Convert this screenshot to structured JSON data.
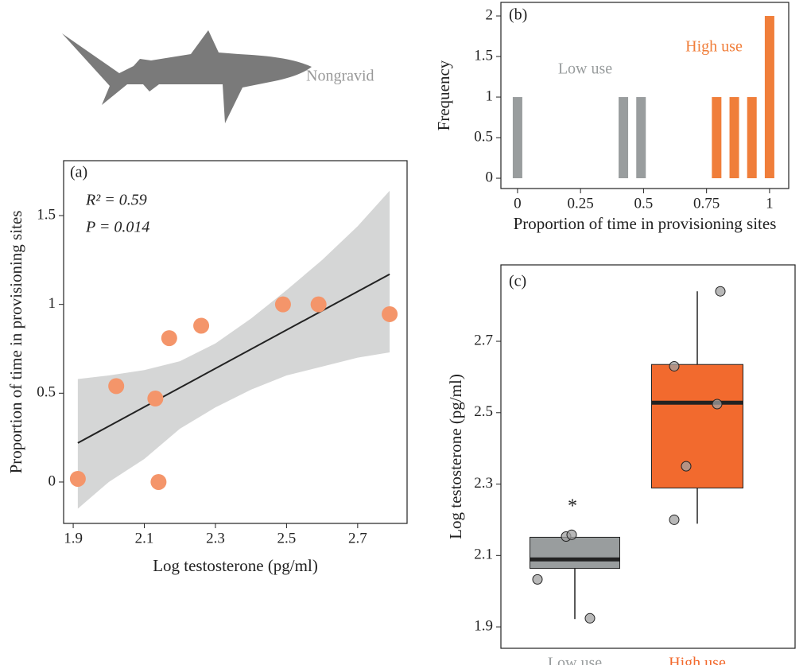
{
  "annotation": "Nongravid",
  "chart_data": [
    {
      "type": "scatter",
      "panel_label": "(a)",
      "annotations": [
        "R² = 0.59",
        "P = 0.014"
      ],
      "xlabel": "Log testosterone (pg/ml)",
      "ylabel": "Proportion of time in provisioning sites",
      "x": [
        1.913,
        2.021,
        2.131,
        2.14,
        2.17,
        2.26,
        2.49,
        2.59,
        2.79
      ],
      "values": [
        0.018,
        0.54,
        0.47,
        0.0,
        0.81,
        0.88,
        1.0,
        1.0,
        0.945
      ],
      "color": "#f4956a",
      "fit": {
        "x": [
          1.913,
          2.79
        ],
        "y": [
          0.22,
          1.17
        ],
        "color": "#222222"
      },
      "band": {
        "x": [
          1.913,
          2.0,
          2.1,
          2.2,
          2.3,
          2.4,
          2.5,
          2.6,
          2.7,
          2.79
        ],
        "upper": [
          0.58,
          0.6,
          0.63,
          0.68,
          0.78,
          0.92,
          1.08,
          1.25,
          1.44,
          1.64
        ],
        "lower": [
          -0.15,
          0.0,
          0.13,
          0.3,
          0.42,
          0.52,
          0.6,
          0.65,
          0.7,
          0.73
        ],
        "color": "#d5d6d6"
      },
      "xlim": [
        1.873,
        2.839
      ],
      "ylim": [
        -0.233,
        1.809
      ],
      "xticks": [
        1.9,
        2.1,
        2.3,
        2.5,
        2.7
      ],
      "yticks": [
        0,
        0.5,
        1,
        1.5
      ]
    },
    {
      "type": "bar",
      "panel_label": "(b)",
      "xlabel": "Proportion of time in provisioning sites",
      "ylabel": "Frequency",
      "series": [
        {
          "name": "Low use",
          "color": "#999d9e",
          "x": [
            0.0,
            0.42,
            0.49
          ],
          "values": [
            1,
            1,
            1
          ]
        },
        {
          "name": "High use",
          "color": "#f07e3a",
          "x": [
            0.79,
            0.86,
            0.93,
            1.0
          ],
          "values": [
            1,
            1,
            1,
            2
          ]
        }
      ],
      "xlim": [
        -0.066,
        1.076
      ],
      "ylim": [
        -0.127,
        2.167
      ],
      "xticks": [
        0,
        0.25,
        0.5,
        0.75,
        1
      ],
      "yticks": [
        0,
        0.5,
        1,
        1.5,
        2
      ]
    },
    {
      "type": "box",
      "panel_label": "(c)",
      "annotations": [
        "*"
      ],
      "ylabel": "Log testosterone (pg/ml)",
      "categories": [
        "Low use",
        "High use"
      ],
      "boxes": [
        {
          "color": "#999d9e",
          "whisker_low": 1.922,
          "q1": 2.064,
          "median": 2.089,
          "q3": 2.151,
          "whisker_high": 2.151,
          "points": [
            2.153,
            2.158,
            2.033,
            1.924
          ]
        },
        {
          "color": "#f26a2e",
          "whisker_low": 2.189,
          "q1": 2.289,
          "median": 2.528,
          "q3": 2.635,
          "whisker_high": 2.84,
          "points": [
            2.84,
            2.63,
            2.524,
            2.35,
            2.2
          ]
        }
      ],
      "ylim": [
        1.84,
        2.914
      ],
      "yticks": [
        1.9,
        2.1,
        2.3,
        2.5,
        2.7
      ]
    }
  ]
}
